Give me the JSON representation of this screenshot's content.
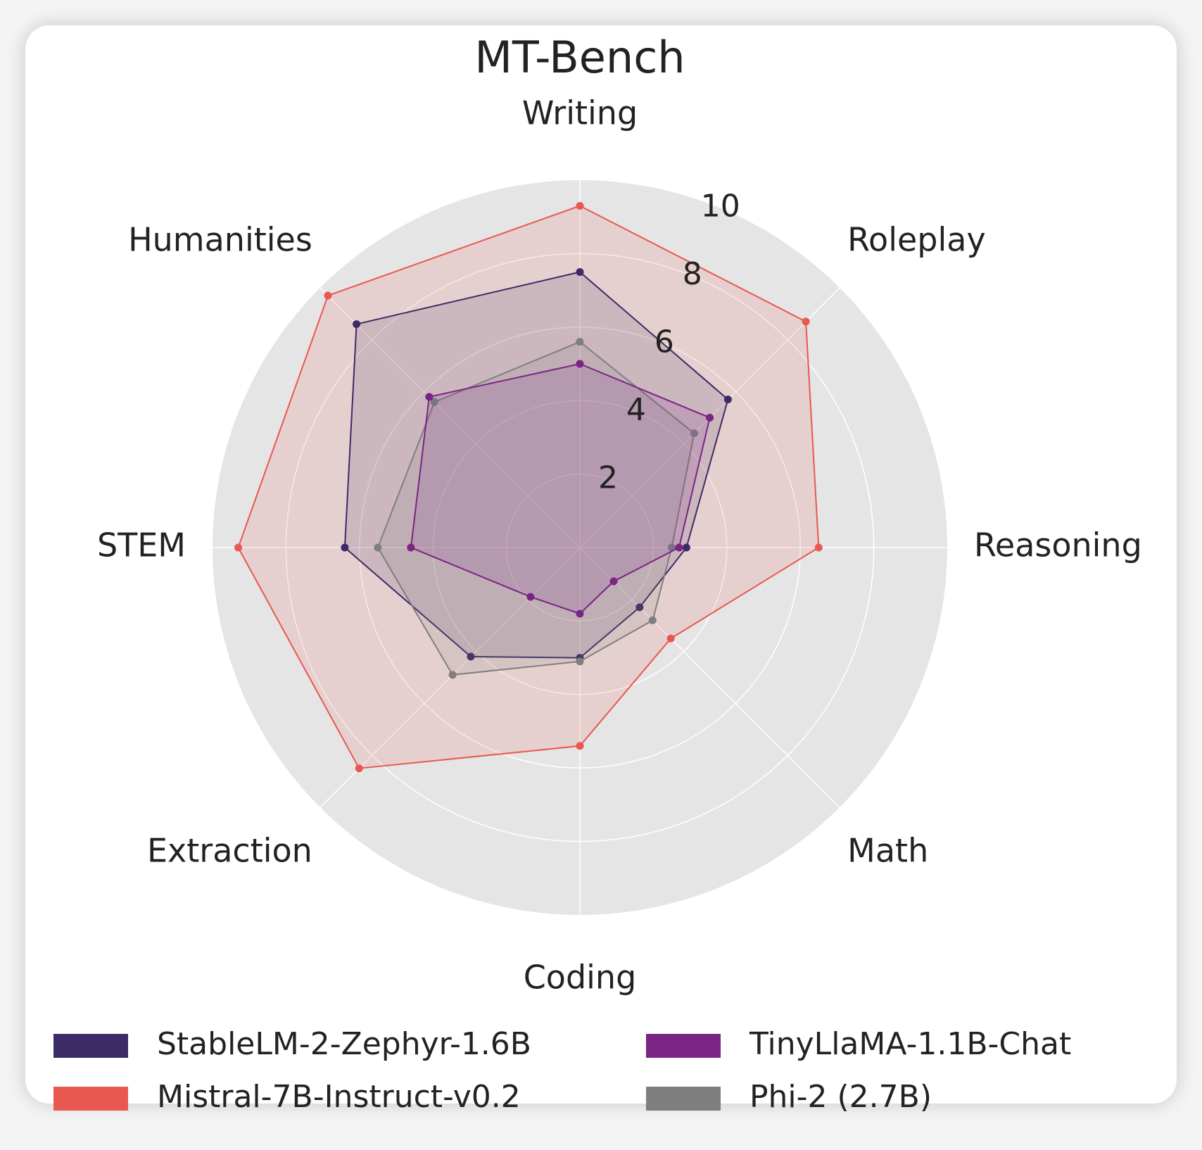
{
  "chart_data": {
    "type": "radar",
    "title": "MT-Bench",
    "axes": [
      "Writing",
      "Roleplay",
      "Reasoning",
      "Math",
      "Coding",
      "Extraction",
      "STEM",
      "Humanities"
    ],
    "rlim": [
      0,
      10
    ],
    "ticks": [
      "2",
      "4",
      "6",
      "8",
      "10"
    ],
    "grid": true,
    "legend_position": "bottom",
    "series": [
      {
        "name": "Mistral-7B-Instruct-v0.2",
        "color": "#e8584f",
        "values": [
          9.3,
          8.7,
          6.5,
          3.5,
          5.4,
          8.5,
          9.3,
          9.7
        ]
      },
      {
        "name": "StableLM-2-Zephyr-1.6B",
        "color": "#3c2b66",
        "values": [
          7.5,
          5.7,
          2.9,
          2.3,
          3.0,
          4.2,
          6.4,
          8.6
        ]
      },
      {
        "name": "Phi-2 (2.7B)",
        "color": "#7f7f7f",
        "values": [
          5.6,
          4.4,
          2.5,
          2.8,
          3.1,
          4.9,
          5.5,
          5.6
        ]
      },
      {
        "name": "TinyLlaMA-1.1B-Chat",
        "color": "#7a2483",
        "values": [
          5.0,
          5.0,
          2.7,
          1.3,
          1.8,
          1.9,
          4.6,
          5.8
        ]
      }
    ],
    "legend_order": [
      "StableLM-2-Zephyr-1.6B",
      "TinyLlaMA-1.1B-Chat",
      "Mistral-7B-Instruct-v0.2",
      "Phi-2 (2.7B)"
    ]
  }
}
